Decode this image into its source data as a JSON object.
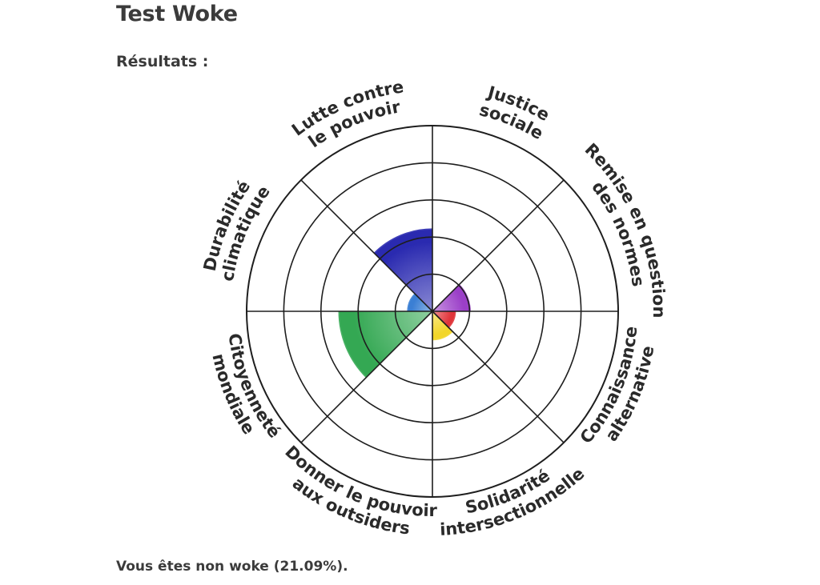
{
  "page": {
    "title": "Test Woke",
    "results_heading": "Résultats :",
    "result_text": "Vous êtes non woke (21.09%)."
  },
  "chart_data": {
    "type": "polar-area",
    "max": 5,
    "rings": 5,
    "sectors": [
      {
        "label": [
          "Justice",
          "sociale"
        ],
        "value": 0,
        "color": "#2a8f2a"
      },
      {
        "label": [
          "Remise en question",
          "des normes"
        ],
        "value": 1.0,
        "color": "#9b3fc8"
      },
      {
        "label": [
          "Connaissance",
          "alternative"
        ],
        "value": 0.6,
        "color": "#e0353b"
      },
      {
        "label": [
          "Solidarité",
          "intersectionnelle"
        ],
        "value": 0.75,
        "color": "#f2d62a"
      },
      {
        "label": [
          "Donner le pouvoir",
          "aux outsiders"
        ],
        "value": 0,
        "color": "#e8862b"
      },
      {
        "label": [
          "Citoyenneté",
          "mondiale"
        ],
        "value": 2.5,
        "color": "#34a853"
      },
      {
        "label": [
          "Durabilité",
          "climatique"
        ],
        "value": 0.65,
        "color": "#3b7fd4"
      },
      {
        "label": [
          "Lutte contre",
          "le pouvoir"
        ],
        "value": 2.2,
        "color": "#2a2ab0"
      }
    ]
  }
}
